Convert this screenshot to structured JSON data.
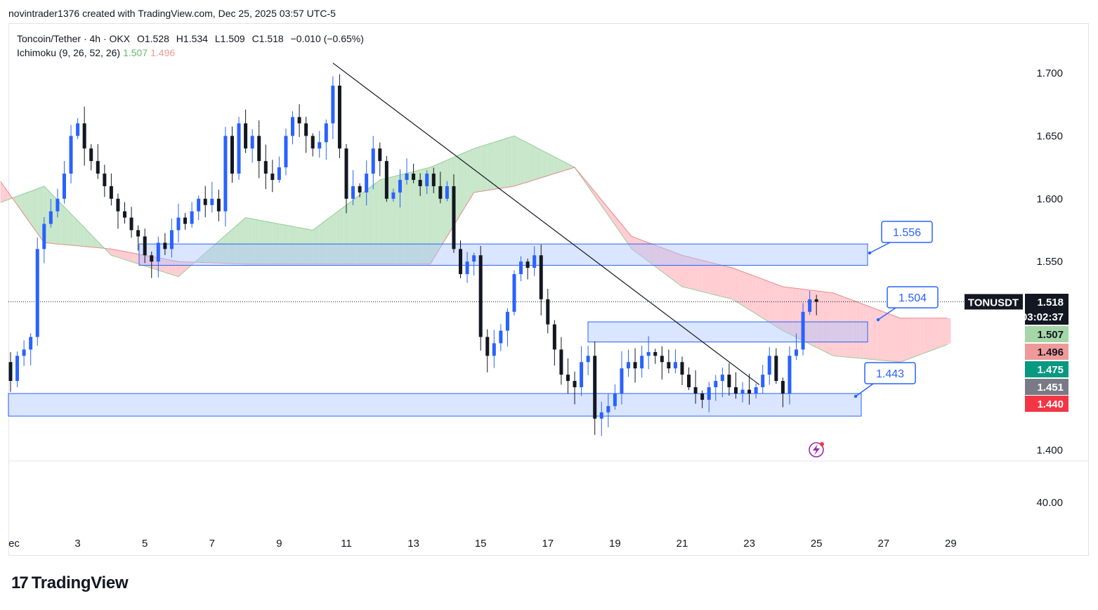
{
  "header": {
    "credit": "novintrader1376 created with TradingView.com, Dec 25, 2025 03:57 UTC-5"
  },
  "legend": {
    "symbol_line": "Toncoin/Tether · 4h · OKX",
    "open": "O1.528",
    "high": "H1.534",
    "low": "L1.509",
    "close": "C1.518",
    "change": "−0.010 (−0.65%)",
    "ichimoku_label": "Ichimoku (9, 26, 52, 26)",
    "ichimoku_v1": "1.507",
    "ichimoku_v2": "1.496"
  },
  "chart_data": {
    "type": "candlestick",
    "symbol": "TONUSDT",
    "timeframe": "4h",
    "ylim": [
      1.383,
      1.728
    ],
    "y_ticks": [
      "1.700",
      "1.650",
      "1.600",
      "1.550",
      "1.400"
    ],
    "secondary_axis_tick": "40.00",
    "x_tick_labels": [
      "ec",
      "3",
      "5",
      "7",
      "9",
      "11",
      "13",
      "15",
      "17",
      "19",
      "21",
      "23",
      "25",
      "27",
      "29"
    ],
    "x_tick_days": [
      1,
      3,
      5,
      7,
      9,
      11,
      13,
      15,
      17,
      19,
      21,
      23,
      25,
      27,
      29
    ],
    "price_badges": [
      {
        "label": "1.518",
        "value": 1.518,
        "sub": "03:02:37",
        "color": "#131722"
      },
      {
        "label": "1.507",
        "value": 1.507,
        "color": "#a5d6a7",
        "text_color": "#131722"
      },
      {
        "label": "1.496",
        "value": 1.496,
        "color": "#ef9a9a",
        "text_color": "#131722"
      },
      {
        "label": "1.475",
        "value": 1.475,
        "color": "#089981",
        "text_color": "#ffffff"
      },
      {
        "label": "1.451",
        "value": 1.451,
        "color": "#787b86",
        "text_color": "#ffffff"
      },
      {
        "label": "1.440",
        "value": 1.44,
        "color": "#f23645",
        "text_color": "#ffffff"
      }
    ],
    "symbol_badge": "TONUSDT",
    "candles_close_path": [
      [
        0.8,
        1.47
      ],
      [
        1.0,
        1.455
      ],
      [
        1.2,
        1.475
      ],
      [
        1.4,
        1.48
      ],
      [
        1.6,
        1.49
      ],
      [
        1.8,
        1.56
      ],
      [
        2.0,
        1.58
      ],
      [
        2.2,
        1.59
      ],
      [
        2.4,
        1.6
      ],
      [
        2.6,
        1.62
      ],
      [
        2.8,
        1.65
      ],
      [
        3.0,
        1.66
      ],
      [
        3.2,
        1.64
      ],
      [
        3.4,
        1.63
      ],
      [
        3.6,
        1.62
      ],
      [
        3.8,
        1.61
      ],
      [
        4.0,
        1.6
      ],
      [
        4.2,
        1.59
      ],
      [
        4.4,
        1.585
      ],
      [
        4.6,
        1.575
      ],
      [
        4.8,
        1.57
      ],
      [
        5.0,
        1.555
      ],
      [
        5.2,
        1.55
      ],
      [
        5.4,
        1.565
      ],
      [
        5.6,
        1.56
      ],
      [
        5.8,
        1.575
      ],
      [
        6.0,
        1.585
      ],
      [
        6.2,
        1.58
      ],
      [
        6.4,
        1.59
      ],
      [
        6.6,
        1.6
      ],
      [
        6.8,
        1.595
      ],
      [
        7.0,
        1.6
      ],
      [
        7.2,
        1.59
      ],
      [
        7.4,
        1.65
      ],
      [
        7.6,
        1.62
      ],
      [
        7.8,
        1.66
      ],
      [
        8.0,
        1.64
      ],
      [
        8.2,
        1.65
      ],
      [
        8.4,
        1.63
      ],
      [
        8.6,
        1.62
      ],
      [
        8.8,
        1.615
      ],
      [
        9.0,
        1.625
      ],
      [
        9.2,
        1.65
      ],
      [
        9.4,
        1.665
      ],
      [
        9.6,
        1.66
      ],
      [
        9.8,
        1.65
      ],
      [
        10.0,
        1.64
      ],
      [
        10.2,
        1.645
      ],
      [
        10.4,
        1.66
      ],
      [
        10.6,
        1.69
      ],
      [
        10.8,
        1.64
      ],
      [
        11.0,
        1.6
      ],
      [
        11.2,
        1.61
      ],
      [
        11.4,
        1.605
      ],
      [
        11.6,
        1.62
      ],
      [
        11.8,
        1.64
      ],
      [
        12.0,
        1.63
      ],
      [
        12.2,
        1.6
      ],
      [
        12.4,
        1.605
      ],
      [
        12.6,
        1.615
      ],
      [
        12.8,
        1.62
      ],
      [
        13.0,
        1.615
      ],
      [
        13.2,
        1.61
      ],
      [
        13.4,
        1.62
      ],
      [
        13.6,
        1.61
      ],
      [
        13.8,
        1.6
      ],
      [
        14.0,
        1.61
      ],
      [
        14.2,
        1.56
      ],
      [
        14.4,
        1.54
      ],
      [
        14.6,
        1.55
      ],
      [
        14.8,
        1.555
      ],
      [
        15.0,
        1.49
      ],
      [
        15.2,
        1.475
      ],
      [
        15.4,
        1.485
      ],
      [
        15.6,
        1.495
      ],
      [
        15.8,
        1.51
      ],
      [
        16.0,
        1.54
      ],
      [
        16.2,
        1.55
      ],
      [
        16.4,
        1.545
      ],
      [
        16.6,
        1.555
      ],
      [
        16.8,
        1.52
      ],
      [
        17.0,
        1.5
      ],
      [
        17.2,
        1.48
      ],
      [
        17.4,
        1.46
      ],
      [
        17.6,
        1.455
      ],
      [
        17.8,
        1.45
      ],
      [
        18.0,
        1.47
      ],
      [
        18.2,
        1.475
      ],
      [
        18.4,
        1.425
      ],
      [
        18.6,
        1.43
      ],
      [
        18.8,
        1.435
      ],
      [
        19.0,
        1.445
      ],
      [
        19.2,
        1.465
      ],
      [
        19.4,
        1.47
      ],
      [
        19.6,
        1.465
      ],
      [
        19.8,
        1.475
      ],
      [
        20.0,
        1.478
      ],
      [
        20.2,
        1.475
      ],
      [
        20.4,
        1.47
      ],
      [
        20.6,
        1.465
      ],
      [
        20.8,
        1.47
      ],
      [
        21.0,
        1.46
      ],
      [
        21.2,
        1.45
      ],
      [
        21.4,
        1.445
      ],
      [
        21.6,
        1.44
      ],
      [
        21.8,
        1.45
      ],
      [
        22.0,
        1.455
      ],
      [
        22.2,
        1.46
      ],
      [
        22.4,
        1.45
      ],
      [
        22.6,
        1.445
      ],
      [
        22.8,
        1.448
      ],
      [
        23.0,
        1.445
      ],
      [
        23.2,
        1.45
      ],
      [
        23.4,
        1.46
      ],
      [
        23.6,
        1.475
      ],
      [
        23.8,
        1.455
      ],
      [
        24.0,
        1.445
      ],
      [
        24.2,
        1.475
      ],
      [
        24.4,
        1.48
      ],
      [
        24.6,
        1.51
      ],
      [
        24.8,
        1.52
      ],
      [
        25.0,
        1.518
      ]
    ],
    "kumo_span_a_key": [
      [
        0.0,
        1.59
      ],
      [
        2.0,
        1.61
      ],
      [
        4.0,
        1.555
      ],
      [
        6.0,
        1.538
      ],
      [
        8.0,
        1.585
      ],
      [
        10.0,
        1.575
      ],
      [
        12.0,
        1.615
      ],
      [
        13.5,
        1.625
      ],
      [
        14.8,
        1.64
      ],
      [
        16.0,
        1.65
      ],
      [
        17.8,
        1.625
      ],
      [
        19.5,
        1.56
      ],
      [
        21.0,
        1.53
      ],
      [
        22.5,
        1.52
      ],
      [
        24.0,
        1.495
      ],
      [
        25.5,
        1.475
      ],
      [
        27.5,
        1.47
      ],
      [
        29.0,
        1.485
      ]
    ],
    "kumo_span_b_key": [
      [
        0.0,
        1.64
      ],
      [
        2.0,
        1.565
      ],
      [
        4.0,
        1.56
      ],
      [
        6.0,
        1.55
      ],
      [
        8.0,
        1.548
      ],
      [
        10.0,
        1.548
      ],
      [
        12.0,
        1.548
      ],
      [
        13.5,
        1.548
      ],
      [
        14.8,
        1.605
      ],
      [
        16.0,
        1.61
      ],
      [
        17.8,
        1.625
      ],
      [
        19.5,
        1.57
      ],
      [
        21.0,
        1.555
      ],
      [
        22.5,
        1.545
      ],
      [
        24.0,
        1.53
      ],
      [
        25.5,
        1.525
      ],
      [
        27.5,
        1.505
      ],
      [
        29.0,
        1.505
      ]
    ],
    "zones": [
      {
        "name": "upper-zone",
        "low": 1.547,
        "high": 1.564
      },
      {
        "name": "middle-zone",
        "low": 1.486,
        "high": 1.502
      },
      {
        "name": "lower-zone",
        "low": 1.427,
        "high": 1.445
      }
    ],
    "callouts": [
      {
        "label": "1.556",
        "value": 1.556
      },
      {
        "label": "1.504",
        "value": 1.504
      },
      {
        "label": "1.443",
        "value": 1.443
      }
    ],
    "trendline": {
      "start": [
        10.6,
        1.708
      ],
      "end": [
        23.3,
        1.452
      ]
    }
  },
  "footer": {
    "brand_mark": "17",
    "brand_name": "TradingView"
  }
}
